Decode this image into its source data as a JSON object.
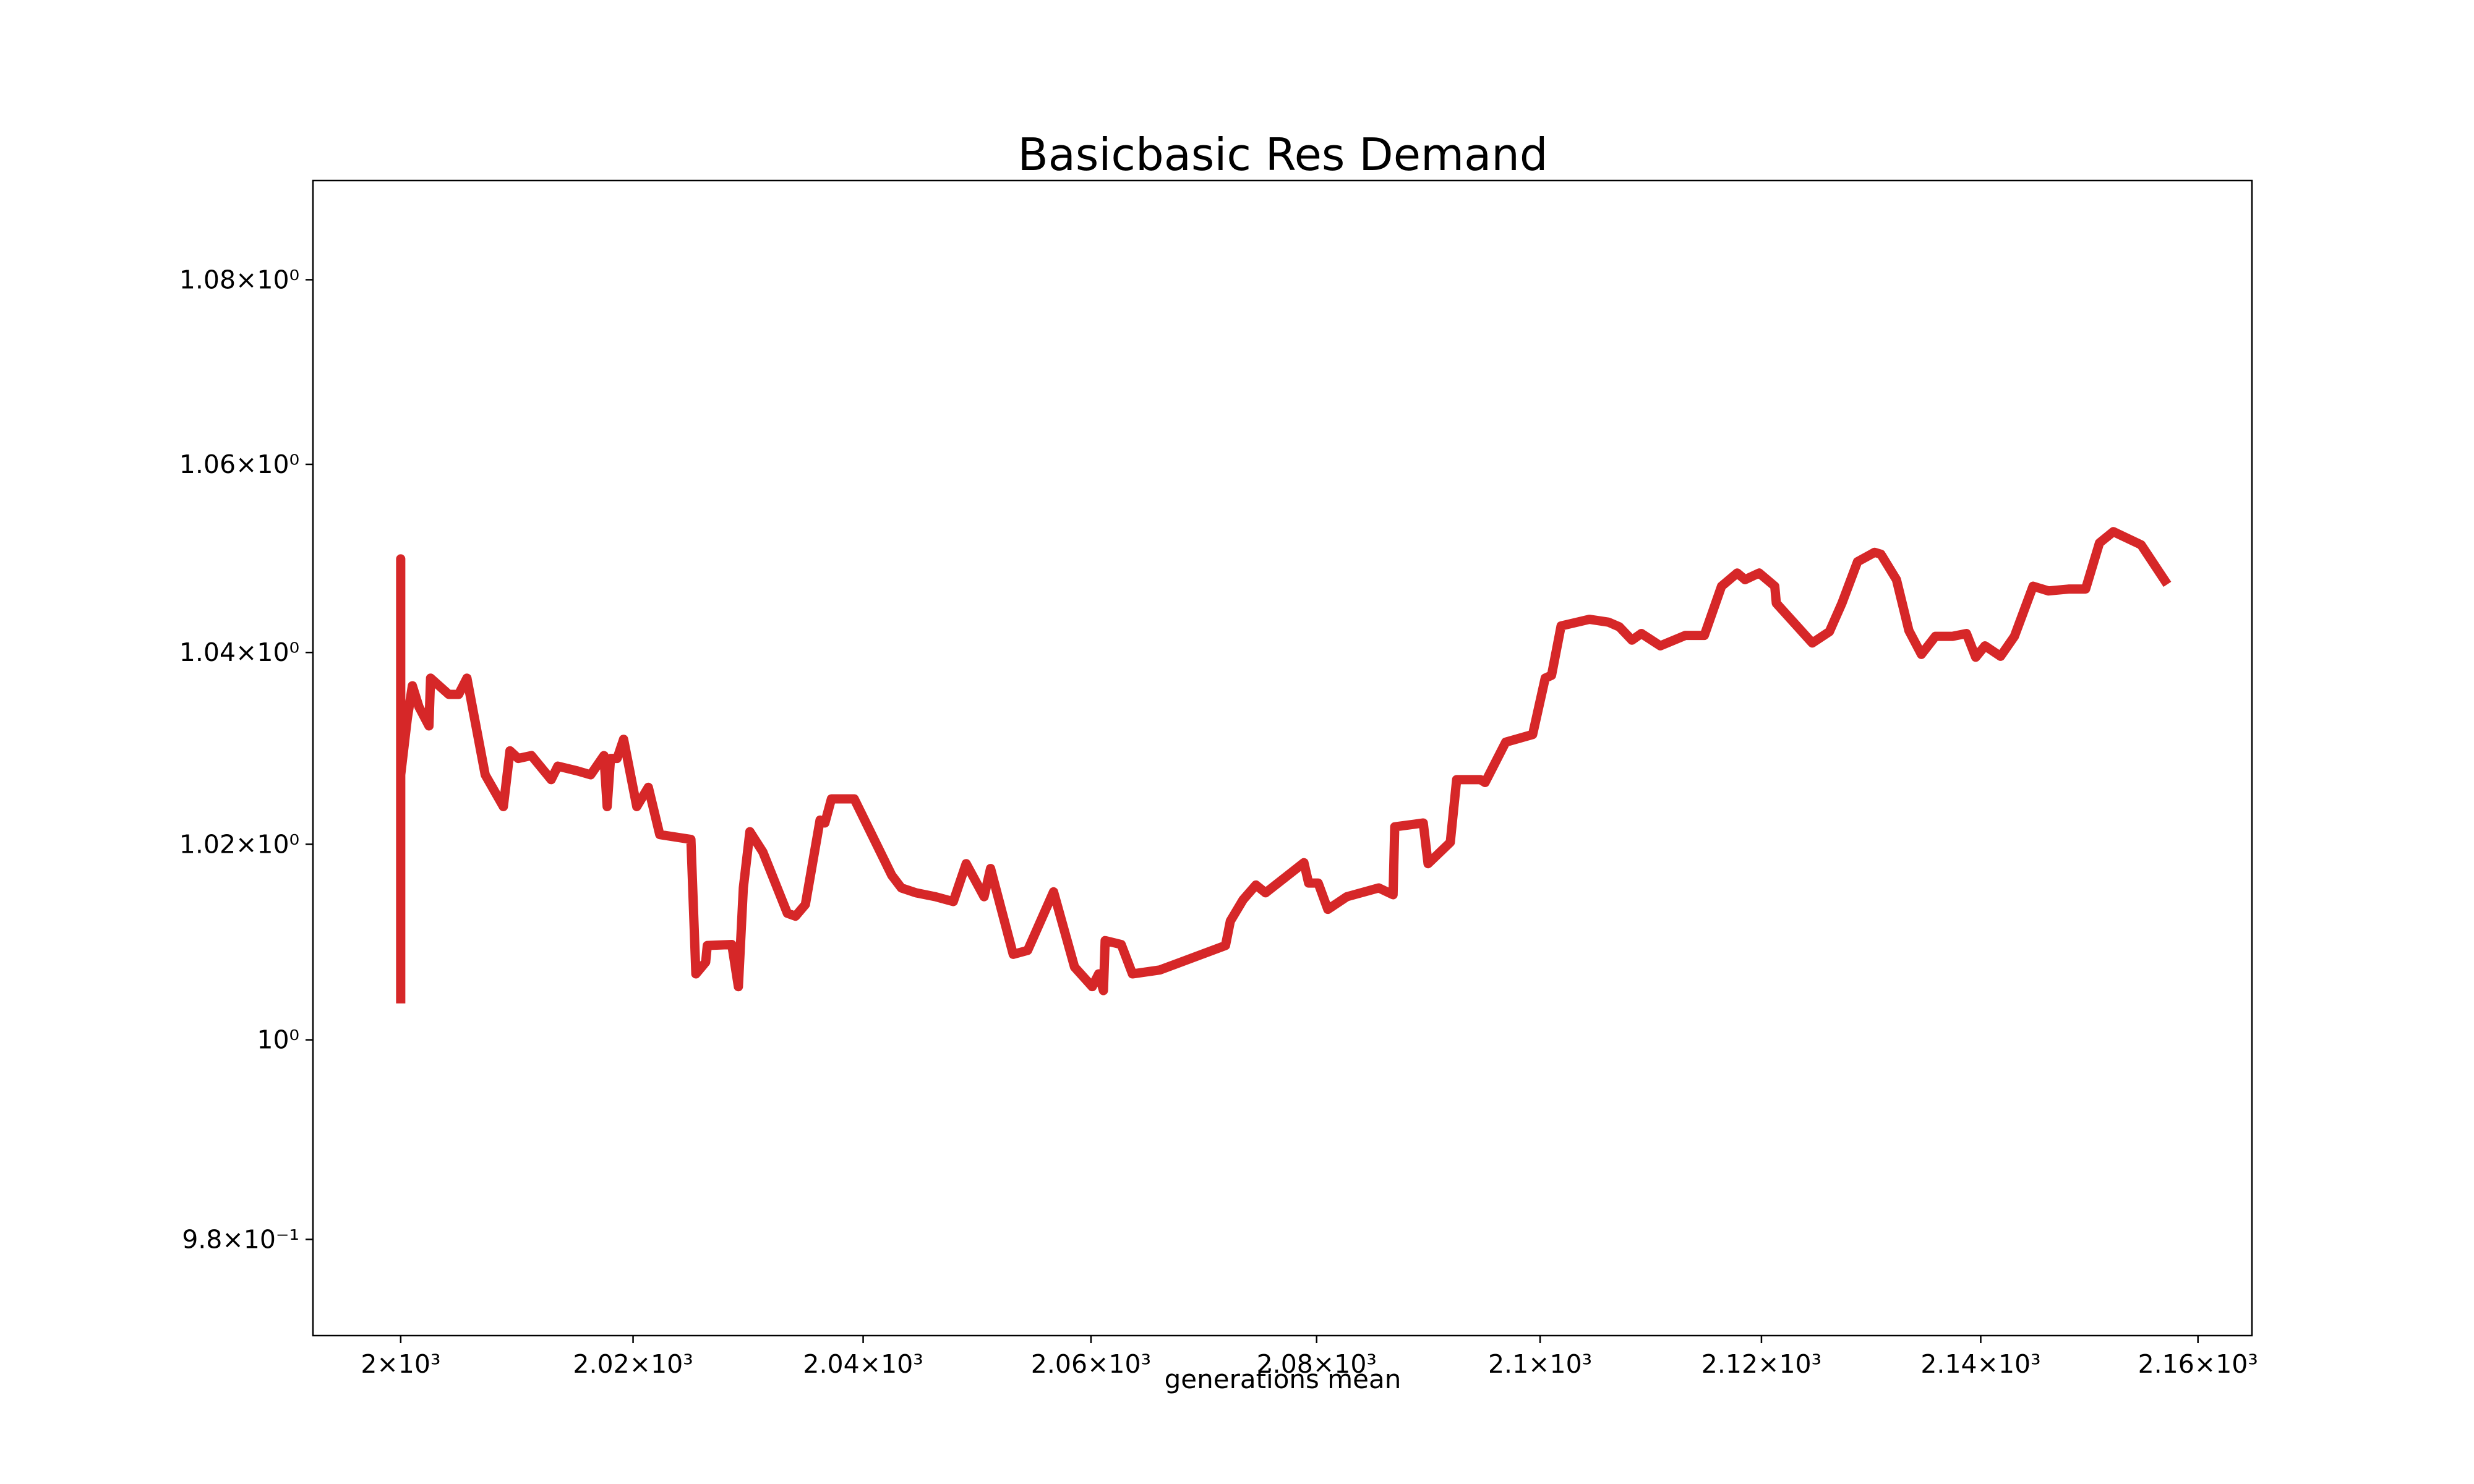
{
  "chart_data": {
    "type": "line",
    "title": "Basicbasic Res Demand",
    "xlabel": "generations mean",
    "xscale": "log",
    "yscale": "log",
    "grid": false,
    "xlim": [
      1992.5,
      2165.0
    ],
    "ylim": [
      0.9705,
      1.0909
    ],
    "xticks": [
      {
        "value": 2000,
        "label": "2×10³"
      },
      {
        "value": 2020,
        "label": "2.02×10³"
      },
      {
        "value": 2040,
        "label": "2.04×10³"
      },
      {
        "value": 2060,
        "label": "2.06×10³"
      },
      {
        "value": 2080,
        "label": "2.08×10³"
      },
      {
        "value": 2100,
        "label": "2.1×10³"
      },
      {
        "value": 2120,
        "label": "2.12×10³"
      },
      {
        "value": 2140,
        "label": "2.14×10³"
      },
      {
        "value": 2160,
        "label": "2.16×10³"
      }
    ],
    "yticks": [
      {
        "value": 0.98,
        "label": "9.8×10⁻¹"
      },
      {
        "value": 1,
        "label": "10⁰"
      },
      {
        "value": 1.02,
        "label": "1.02×10⁰"
      },
      {
        "value": 1.04,
        "label": "1.04×10⁰"
      },
      {
        "value": 1.06,
        "label": "1.06×10⁰"
      },
      {
        "value": 1.08,
        "label": "1.08×10⁰"
      }
    ],
    "x": [
      2000,
      2000,
      2000,
      2000.57,
      2001.0,
      2001.56,
      2002.42,
      2002.56,
      2004.12,
      2004.97,
      2005.68,
      2007.25,
      2008.81,
      2009.38,
      2010.09,
      2011.23,
      2012.93,
      2013.5,
      2015.2,
      2016.34,
      2017.48,
      2017.76,
      2018.05,
      2018.62,
      2019.18,
      2020.32,
      2021.32,
      2022.31,
      2025.01,
      2025.44,
      2026.29,
      2026.43,
      2028.56,
      2029.13,
      2029.56,
      2030.13,
      2031.26,
      2033.39,
      2034.1,
      2034.96,
      2036.24,
      2036.66,
      2037.23,
      2039.22,
      2042.5,
      2043.34,
      2044.62,
      2046.32,
      2047.89,
      2049.02,
      2050.59,
      2051.16,
      2053.15,
      2054.42,
      2056.7,
      2058.55,
      2060.11,
      2060.68,
      2061.1,
      2061.25,
      2062.67,
      2063.66,
      2066.08,
      2071.9,
      2072.33,
      2073.47,
      2074.6,
      2075.46,
      2078.87,
      2079.29,
      2080.14,
      2081.0,
      2082.7,
      2085.54,
      2086.82,
      2086.97,
      2089.52,
      2089.95,
      2091.94,
      2092.51,
      2094.64,
      2095.06,
      2096.91,
      2099.33,
      2100.46,
      2101.03,
      2101.89,
      2104.44,
      2106.15,
      2107.14,
      2108.28,
      2109.13,
      2110.84,
      2113.11,
      2114.82,
      2116.38,
      2117.8,
      2118.51,
      2119.79,
      2121.21,
      2121.35,
      2124.62,
      2126.18,
      2127.32,
      2128.74,
      2130.3,
      2130.87,
      2132.29,
      2133.43,
      2134.57,
      2135.85,
      2137.41,
      2138.69,
      2139.54,
      2140.39,
      2141.82,
      2143.09,
      2144.8,
      2146.22,
      2148.07,
      2149.63,
      2150.91,
      2152.19,
      2154.75,
      2157.17
    ],
    "series": [
      {
        "color": "#d62728",
        "values": [
          1.0037,
          1.0499,
          1.0272,
          1.0331,
          1.0365,
          1.0343,
          1.0323,
          1.0373,
          1.0356,
          1.0356,
          1.0373,
          1.0272,
          1.0239,
          1.0297,
          1.0289,
          1.0292,
          1.0267,
          1.0281,
          1.0276,
          1.0272,
          1.0292,
          1.0239,
          1.0289,
          1.0289,
          1.0309,
          1.0239,
          1.0259,
          1.021,
          1.0205,
          1.0067,
          1.0079,
          1.0096,
          1.0097,
          1.0054,
          1.0155,
          1.0213,
          1.0192,
          1.0129,
          1.0126,
          1.0138,
          1.0225,
          1.0222,
          1.0247,
          1.0247,
          1.0168,
          1.0155,
          1.015,
          1.0146,
          1.0141,
          1.018,
          1.0146,
          1.0175,
          1.0087,
          1.0091,
          1.0151,
          1.0074,
          1.0054,
          1.0067,
          1.005,
          1.0101,
          1.0097,
          1.0067,
          1.0071,
          1.0096,
          1.0121,
          1.0143,
          1.0158,
          1.015,
          1.0181,
          1.016,
          1.016,
          1.0133,
          1.0146,
          1.0155,
          1.0148,
          1.0218,
          1.0222,
          1.018,
          1.0202,
          1.0267,
          1.0267,
          1.0264,
          1.0306,
          1.0314,
          1.0373,
          1.0376,
          1.0428,
          1.0435,
          1.0432,
          1.0427,
          1.0413,
          1.042,
          1.0407,
          1.0418,
          1.0418,
          1.047,
          1.0484,
          1.0477,
          1.0484,
          1.047,
          1.0452,
          1.041,
          1.0422,
          1.0452,
          1.0496,
          1.0506,
          1.0504,
          1.0477,
          1.0423,
          1.0398,
          1.0417,
          1.0417,
          1.042,
          1.0395,
          1.0407,
          1.0396,
          1.0417,
          1.047,
          1.0465,
          1.0467,
          1.0467,
          1.0516,
          1.0528,
          1.0514,
          1.0472
        ]
      }
    ]
  }
}
